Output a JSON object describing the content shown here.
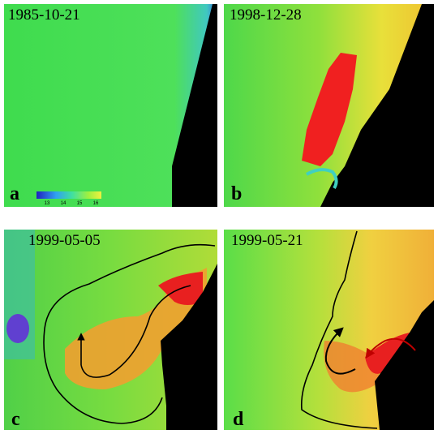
{
  "panels": [
    {
      "date": "1985-10-21",
      "label": "a"
    },
    {
      "date": "1998-12-28",
      "label": "b"
    },
    {
      "date": "1999-05-05",
      "label": "c"
    },
    {
      "date": "1999-05-21",
      "label": "d"
    }
  ],
  "colorbar": {
    "ticks": [
      "13",
      "14",
      "15",
      "16"
    ]
  }
}
